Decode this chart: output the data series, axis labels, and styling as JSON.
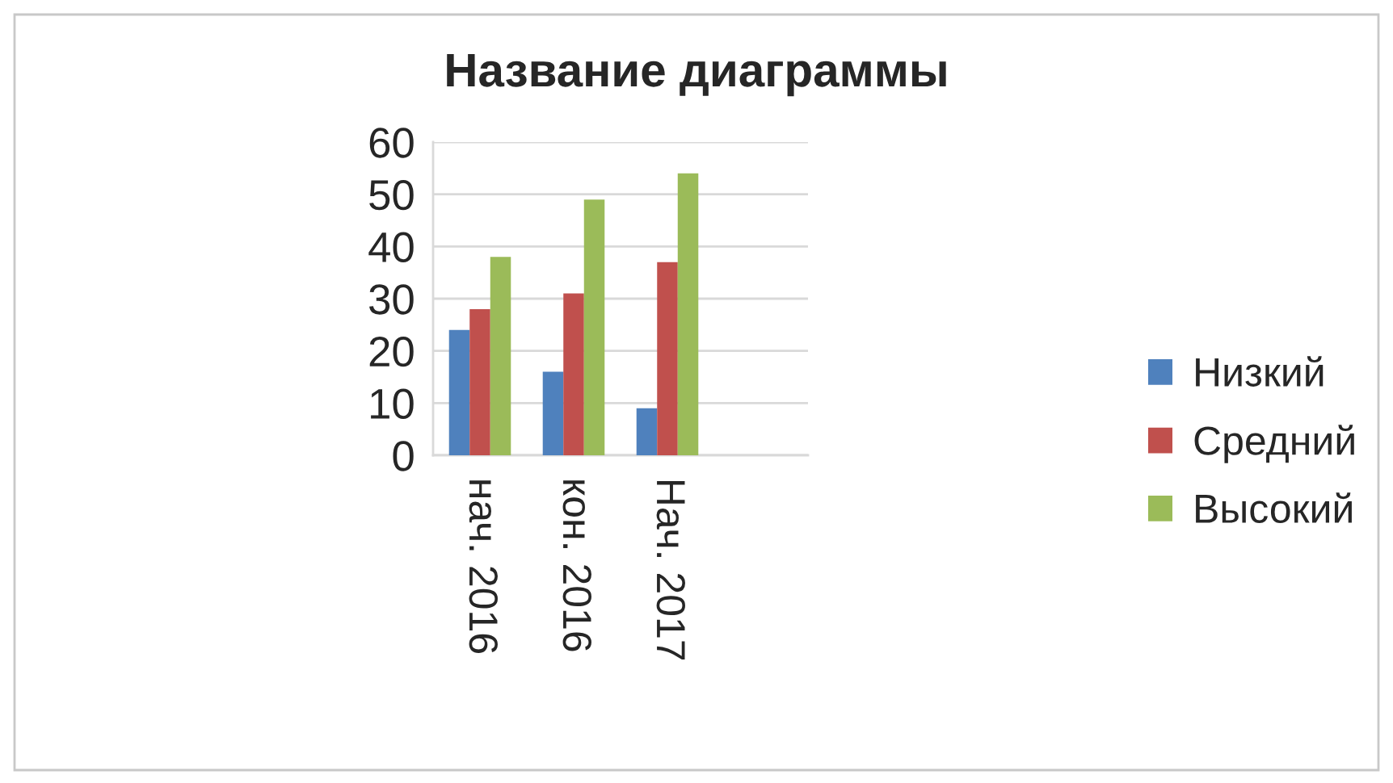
{
  "chart_data": {
    "type": "bar",
    "title": "Название диаграммы",
    "categories": [
      "нач. 2016",
      "кон. 2016",
      "Нач. 2017",
      null
    ],
    "series": [
      {
        "name": "Низкий",
        "color": "#4f81bd",
        "values": [
          24,
          16,
          9,
          null
        ]
      },
      {
        "name": "Средний",
        "color": "#c0504d",
        "values": [
          28,
          31,
          37,
          null
        ]
      },
      {
        "name": "Высокий",
        "color": "#9bbb59",
        "values": [
          38,
          49,
          54,
          null
        ]
      }
    ],
    "ylim": [
      0,
      60
    ],
    "yticks": [
      0,
      10,
      20,
      30,
      40,
      50,
      60
    ],
    "grid": "y",
    "legend": "right"
  }
}
